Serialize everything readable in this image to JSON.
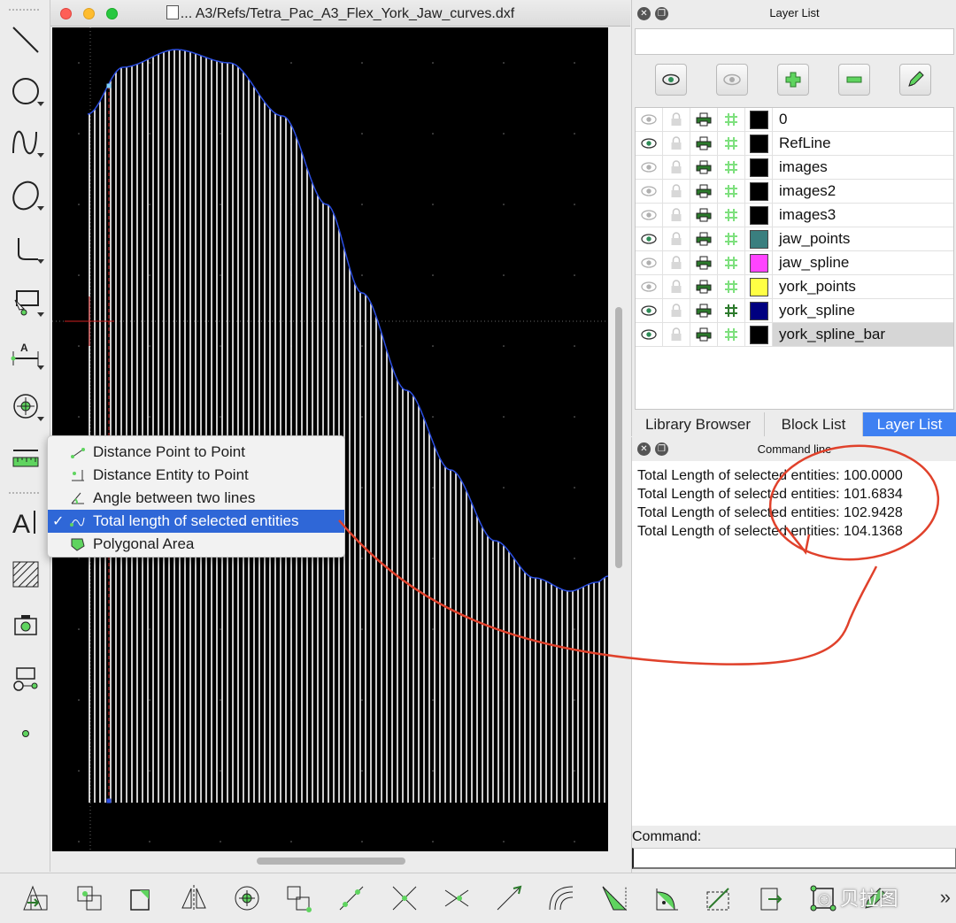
{
  "window": {
    "title": "... A3/Refs/Tetra_Pac_A3_Flex_York_Jaw_curves.dxf"
  },
  "left_toolbar": {
    "tools": [
      {
        "name": "line-tool-icon"
      },
      {
        "name": "circle-tool-icon"
      },
      {
        "name": "spline-tool-icon"
      },
      {
        "name": "ellipse-tool-icon"
      },
      {
        "name": "polyline-tool-icon"
      },
      {
        "name": "select-tool-icon"
      },
      {
        "name": "dimension-tool-icon"
      },
      {
        "name": "modify-tool-icon"
      },
      {
        "name": "measure-tool-icon"
      },
      {
        "name": "text-tool-icon"
      },
      {
        "name": "hatch-tool-icon"
      },
      {
        "name": "image-tool-icon"
      },
      {
        "name": "block-tool-icon"
      },
      {
        "name": "point-tool-icon"
      }
    ]
  },
  "measure_menu": {
    "items": [
      {
        "label": "Distance Point to Point",
        "checked": false
      },
      {
        "label": "Distance Entity to Point",
        "checked": false
      },
      {
        "label": "Angle between two lines",
        "checked": false
      },
      {
        "label": "Total length of selected entities",
        "checked": true
      },
      {
        "label": "Polygonal Area",
        "checked": false
      }
    ],
    "check_mark": "✓"
  },
  "layer_dock": {
    "title": "Layer List",
    "close_glyph": "✕",
    "float_glyph": "❐",
    "filter_value": "",
    "tools": [
      "show-all-icon",
      "hide-all-icon",
      "add-layer-icon",
      "remove-layer-icon",
      "edit-layer-icon"
    ],
    "layers": [
      {
        "name": "0",
        "visible": false,
        "color": "#000000",
        "active": false
      },
      {
        "name": "RefLine",
        "visible": true,
        "color": "#000000",
        "active": false
      },
      {
        "name": "images",
        "visible": false,
        "color": "#000000",
        "active": false
      },
      {
        "name": "images2",
        "visible": false,
        "color": "#000000",
        "active": false
      },
      {
        "name": "images3",
        "visible": false,
        "color": "#000000",
        "active": false
      },
      {
        "name": "jaw_points",
        "visible": true,
        "color": "#3a7f7f",
        "active": false
      },
      {
        "name": "jaw_spline",
        "visible": false,
        "color": "#ff44ff",
        "active": false
      },
      {
        "name": "york_points",
        "visible": false,
        "color": "#ffff44",
        "active": false
      },
      {
        "name": "york_spline",
        "visible": true,
        "color": "#000080",
        "active": false
      },
      {
        "name": "york_spline_bar",
        "visible": true,
        "color": "#000000",
        "active": true
      }
    ],
    "tabs": [
      {
        "label": "Library Browser",
        "active": false
      },
      {
        "label": "Block List",
        "active": false
      },
      {
        "label": "Layer List",
        "active": true
      }
    ]
  },
  "command_dock": {
    "title": "Command line",
    "output": [
      "Total Length of selected entities: 100.0000",
      "Total Length of selected entities: 101.6834",
      "Total Length of selected entities: 102.9428",
      "Total Length of selected entities: 104.1368"
    ],
    "prompt_label": "Command:",
    "input_value": ""
  },
  "bottom_toolbar": {
    "tools": [
      "move-icon",
      "copy-icon",
      "scale-icon",
      "mirror-icon",
      "rotate-icon",
      "rotate2-icon",
      "trim-icon",
      "cut-icon",
      "break-icon",
      "extend-icon",
      "offset-icon",
      "bevel-icon",
      "round-icon",
      "stretch-icon",
      "explode-icon",
      "properties-icon",
      "attributes-icon"
    ],
    "more_glyph": "»"
  },
  "watermark": "贝拉图",
  "colors": {
    "canvas_bg": "#000000",
    "bar_color": "#ffffff",
    "curve_color": "#2b4ee0",
    "annotation_color": "#e0412b",
    "selection_blue": "#2f67d7"
  }
}
